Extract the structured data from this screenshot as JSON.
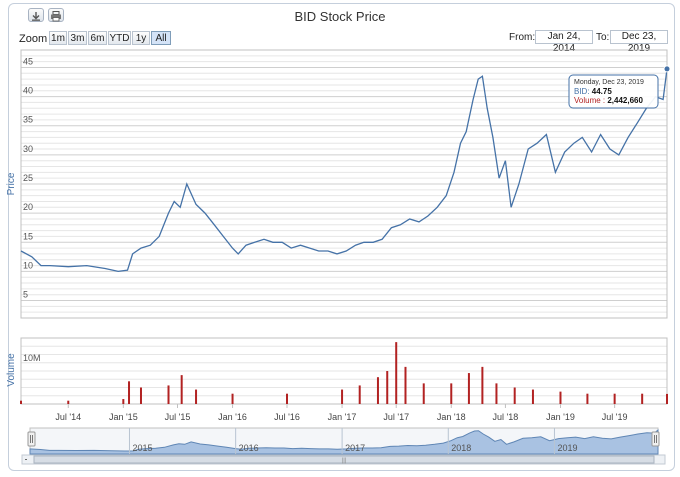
{
  "toolbar": {
    "export_icon": "download-icon",
    "print_icon": "print-icon"
  },
  "title": "BID Stock Price",
  "zoom": {
    "label": "Zoom",
    "buttons": [
      "1m",
      "3m",
      "6m",
      "YTD",
      "1y",
      "All"
    ],
    "selected": "All"
  },
  "range": {
    "from_label": "From:",
    "from_value": "Jan 24, 2014",
    "to_label": "To:",
    "to_value": "Dec 23, 2019"
  },
  "tooltip": {
    "date": "Monday, Dec 23, 2019",
    "series_label": "BID",
    "series_value": "44.75",
    "volume_label": "Volume",
    "volume_value": "2,442,660"
  },
  "colors": {
    "price_line": "#4572a7",
    "volume": "#b22222",
    "navigator_fill": "#a9c2e2",
    "navigator_line": "#5f86b5"
  },
  "chart_data": {
    "type": "line",
    "title": "BID Stock Price",
    "x_range": [
      "2014-01-24",
      "2019-12-23"
    ],
    "x_ticks": [
      "Jul '14",
      "Jan '15",
      "Jul '15",
      "Jan '16",
      "Jul '16",
      "Jan '17",
      "Jul '17",
      "Jan '18",
      "Jul '18",
      "Jan '19",
      "Jul '19"
    ],
    "price": {
      "ylabel": "Price",
      "yticks": [
        5,
        10,
        15,
        20,
        25,
        30,
        35,
        40,
        45
      ],
      "ylim": [
        2,
        48
      ],
      "series": [
        {
          "name": "BID",
          "x": [
            "2014-01-24",
            "2014-03-01",
            "2014-04-01",
            "2014-05-01",
            "2014-07-01",
            "2014-09-01",
            "2014-11-01",
            "2014-12-15",
            "2015-01-15",
            "2015-02-01",
            "2015-03-01",
            "2015-04-01",
            "2015-05-01",
            "2015-06-01",
            "2015-06-20",
            "2015-07-10",
            "2015-08-01",
            "2015-09-01",
            "2015-10-01",
            "2015-11-01",
            "2015-12-01",
            "2016-01-01",
            "2016-01-20",
            "2016-02-15",
            "2016-03-15",
            "2016-04-15",
            "2016-05-15",
            "2016-06-15",
            "2016-07-15",
            "2016-08-15",
            "2016-09-15",
            "2016-10-15",
            "2016-11-15",
            "2016-12-15",
            "2017-01-15",
            "2017-02-15",
            "2017-03-15",
            "2017-04-15",
            "2017-05-15",
            "2017-06-15",
            "2017-07-15",
            "2017-08-15",
            "2017-09-15",
            "2017-10-15",
            "2017-11-15",
            "2017-12-15",
            "2018-01-10",
            "2018-02-01",
            "2018-02-20",
            "2018-03-15",
            "2018-04-01",
            "2018-04-15",
            "2018-05-01",
            "2018-05-20",
            "2018-06-10",
            "2018-07-01",
            "2018-07-20",
            "2018-08-15",
            "2018-09-15",
            "2018-10-15",
            "2018-11-15",
            "2018-12-15",
            "2019-01-15",
            "2019-02-15",
            "2019-03-15",
            "2019-04-15",
            "2019-05-15",
            "2019-06-15",
            "2019-07-15",
            "2019-08-15",
            "2019-09-15",
            "2019-10-15",
            "2019-11-15",
            "2019-12-10",
            "2019-12-23"
          ],
          "y": [
            13.5,
            12.5,
            11.0,
            11.0,
            10.8,
            11.0,
            10.5,
            10.0,
            10.2,
            13.0,
            14.0,
            14.5,
            16.0,
            20.0,
            22.0,
            21.0,
            25.0,
            21.5,
            20.0,
            18.0,
            16.0,
            14.0,
            13.0,
            14.5,
            15.0,
            15.5,
            15.0,
            15.0,
            14.0,
            14.5,
            14.0,
            13.5,
            13.5,
            13.0,
            13.5,
            14.5,
            15.0,
            15.0,
            15.5,
            17.5,
            18.0,
            19.0,
            18.5,
            19.5,
            21.0,
            23.0,
            27.0,
            32.0,
            34.0,
            39.5,
            43.0,
            43.5,
            38.0,
            33.0,
            26.0,
            29.0,
            21.0,
            25.0,
            31.0,
            32.0,
            33.5,
            27.0,
            30.5,
            32.0,
            33.0,
            30.5,
            33.5,
            31.0,
            30.0,
            33.0,
            35.5,
            38.0,
            40.0,
            39.5,
            44.75
          ]
        }
      ]
    },
    "volume": {
      "ylabel": "Volume",
      "yticks_labeled": [
        "10M"
      ],
      "ylim": [
        0,
        16000000
      ],
      "series": [
        {
          "name": "Volume",
          "x": [
            "2014-01-24",
            "2014-07-01",
            "2015-01-01",
            "2015-01-20",
            "2015-03-01",
            "2015-06-01",
            "2015-07-15",
            "2015-09-01",
            "2016-01-01",
            "2016-07-01",
            "2017-01-01",
            "2017-03-01",
            "2017-05-01",
            "2017-06-01",
            "2017-07-01",
            "2017-08-01",
            "2017-10-01",
            "2018-01-01",
            "2018-03-01",
            "2018-04-15",
            "2018-06-01",
            "2018-08-01",
            "2018-10-01",
            "2019-01-01",
            "2019-04-01",
            "2019-07-01",
            "2019-10-01",
            "2019-12-23"
          ],
          "y": [
            800000,
            800000,
            1200000,
            5500000,
            4000000,
            4500000,
            7000000,
            3500000,
            2500000,
            2500000,
            3500000,
            4500000,
            6500000,
            8000000,
            15000000,
            9000000,
            5000000,
            5000000,
            7500000,
            9000000,
            5000000,
            4000000,
            3500000,
            3000000,
            2500000,
            2500000,
            2500000,
            2442660
          ]
        }
      ]
    },
    "navigator": {
      "year_labels": [
        "2015",
        "2016",
        "2017",
        "2018",
        "2019"
      ]
    }
  }
}
